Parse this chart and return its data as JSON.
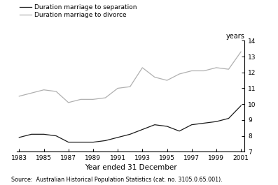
{
  "years": [
    1983,
    1984,
    1985,
    1986,
    1987,
    1988,
    1989,
    1990,
    1991,
    1992,
    1993,
    1994,
    1995,
    1996,
    1997,
    1998,
    1999,
    2000,
    2001
  ],
  "separation": [
    7.9,
    8.1,
    8.1,
    8.0,
    7.6,
    7.6,
    7.6,
    7.7,
    7.9,
    8.1,
    8.4,
    8.7,
    8.6,
    8.3,
    8.7,
    8.8,
    8.9,
    9.1,
    9.9
  ],
  "divorce": [
    10.5,
    10.7,
    10.9,
    10.8,
    10.1,
    10.3,
    10.3,
    10.4,
    11.0,
    11.1,
    12.3,
    11.7,
    11.5,
    11.9,
    12.1,
    12.1,
    12.3,
    12.2,
    13.3
  ],
  "separation_color": "#1a1a1a",
  "divorce_color": "#b0b0b0",
  "xlabel": "Year ended 31 December",
  "ylabel": "years",
  "ylim": [
    7,
    14
  ],
  "yticks": [
    7,
    8,
    9,
    10,
    11,
    12,
    13,
    14
  ],
  "xlim_min": 1983,
  "xlim_max": 2001,
  "xticks": [
    1983,
    1985,
    1987,
    1989,
    1991,
    1993,
    1995,
    1997,
    1999,
    2001
  ],
  "legend_separation": "Duration marriage to separation",
  "legend_divorce": "Duration marriage to divorce",
  "source_text": "Source:  Australian Historical Population Statistics (cat. no. 3105.0.65.001).",
  "background_color": "#ffffff",
  "line_width": 0.9
}
